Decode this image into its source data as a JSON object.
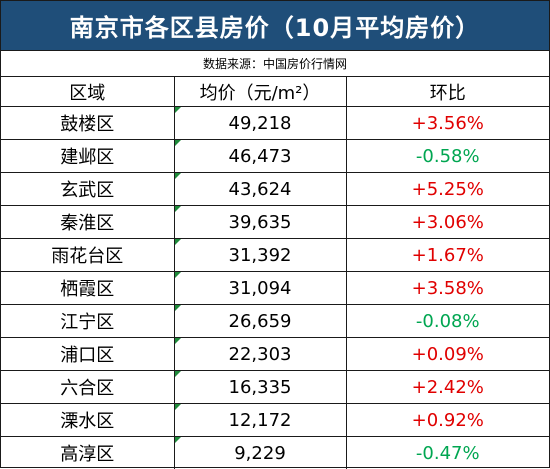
{
  "title": "南京市各区县房价（10月平均房价）",
  "source": "数据来源：中国房价行情网",
  "headers": {
    "district": "区域",
    "price": "均价（元/m²）",
    "change": "环比"
  },
  "colors": {
    "header_bg": "#1f4e79",
    "positive": "#e00000",
    "negative": "#00a651"
  },
  "rows": [
    {
      "district": "鼓楼区",
      "price": "49,218",
      "change": "+3.56%",
      "trend": "pos"
    },
    {
      "district": "建邺区",
      "price": "46,473",
      "change": "-0.58%",
      "trend": "neg"
    },
    {
      "district": "玄武区",
      "price": "43,624",
      "change": "+5.25%",
      "trend": "pos"
    },
    {
      "district": "秦淮区",
      "price": "39,635",
      "change": "+3.06%",
      "trend": "pos"
    },
    {
      "district": "雨花台区",
      "price": "31,392",
      "change": "+1.67%",
      "trend": "pos"
    },
    {
      "district": "栖霞区",
      "price": "31,094",
      "change": "+3.58%",
      "trend": "pos"
    },
    {
      "district": "江宁区",
      "price": "26,659",
      "change": "-0.08%",
      "trend": "neg"
    },
    {
      "district": "浦口区",
      "price": "22,303",
      "change": "+0.09%",
      "trend": "pos"
    },
    {
      "district": "六合区",
      "price": "16,335",
      "change": "+2.42%",
      "trend": "pos"
    },
    {
      "district": "溧水区",
      "price": "12,172",
      "change": "+0.92%",
      "trend": "pos"
    },
    {
      "district": "高淳区",
      "price": "9,229",
      "change": "-0.47%",
      "trend": "neg"
    }
  ]
}
